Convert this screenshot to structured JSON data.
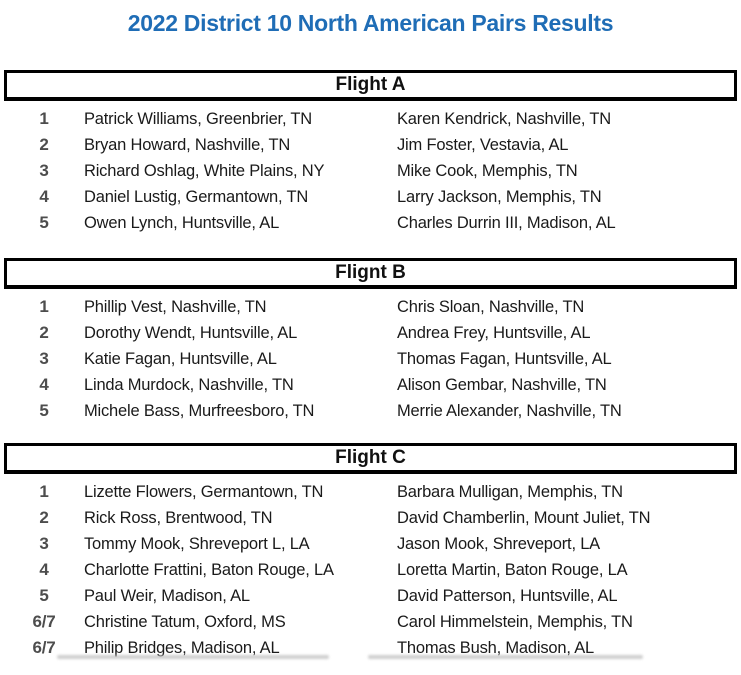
{
  "title": "2022 District 10 North American Pairs Results",
  "flights": [
    {
      "name": "Flight A",
      "rows": [
        {
          "rank": "1",
          "player1": "Patrick Williams, Greenbrier, TN",
          "player2": "Karen Kendrick, Nashville, TN"
        },
        {
          "rank": "2",
          "player1": "Bryan Howard, Nashville, TN",
          "player2": "Jim Foster, Vestavia, AL"
        },
        {
          "rank": "3",
          "player1": "Richard Oshlag, White Plains, NY",
          "player2": "Mike Cook, Memphis, TN"
        },
        {
          "rank": "4",
          "player1": "Daniel Lustig, Germantown, TN",
          "player2": "Larry Jackson, Memphis, TN"
        },
        {
          "rank": "5",
          "player1": "Owen Lynch, Huntsville, AL",
          "player2": "Charles Durrin III, Madison, AL"
        }
      ]
    },
    {
      "name": "Flignt B",
      "rows": [
        {
          "rank": "1",
          "player1": "Phillip Vest, Nashville, TN",
          "player2": "Chris Sloan, Nashville, TN"
        },
        {
          "rank": "2",
          "player1": "Dorothy Wendt, Huntsville, AL",
          "player2": "Andrea Frey, Huntsville, AL"
        },
        {
          "rank": "3",
          "player1": "Katie Fagan, Huntsville, AL",
          "player2": "Thomas Fagan, Huntsville, AL"
        },
        {
          "rank": "4",
          "player1": "Linda Murdock, Nashville, TN",
          "player2": "Alison Gembar, Nashville, TN"
        },
        {
          "rank": "5",
          "player1": "Michele Bass, Murfreesboro, TN",
          "player2": "Merrie Alexander, Nashville, TN"
        }
      ]
    },
    {
      "name": "Flight C",
      "rows": [
        {
          "rank": "1",
          "player1": "Lizette Flowers, Germantown, TN",
          "player2": "Barbara Mulligan, Memphis, TN"
        },
        {
          "rank": "2",
          "player1": "Rick Ross, Brentwood, TN",
          "player2": "David Chamberlin, Mount Juliet, TN"
        },
        {
          "rank": "3",
          "player1": "Tommy Mook, Shreveport L, LA",
          "player2": "Jason Mook, Shreveport, LA"
        },
        {
          "rank": "4",
          "player1": "Charlotte Frattini, Baton Rouge, LA",
          "player2": "Loretta Martin, Baton Rouge, LA"
        },
        {
          "rank": "5",
          "player1": "Paul Weir, Madison, AL",
          "player2": "David Patterson, Huntsville, AL"
        },
        {
          "rank": "6/7",
          "player1": "Christine Tatum, Oxford, MS",
          "player2": "Carol Himmelstein, Memphis, TN"
        },
        {
          "rank": "6/7",
          "player1": "Philip Bridges, Madison, AL",
          "player2": "Thomas Bush, Madison, AL"
        }
      ]
    }
  ],
  "colors": {
    "title_blue": "#1f6db6",
    "rank_gray": "#4d4d4d",
    "border_black": "#000000"
  }
}
